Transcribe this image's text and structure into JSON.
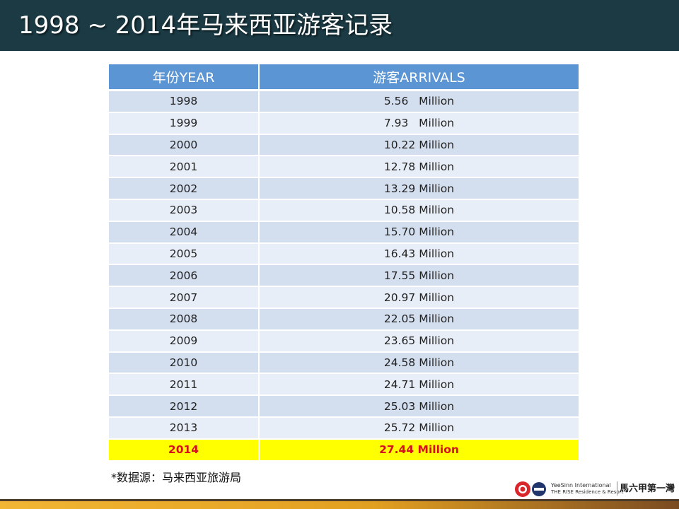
{
  "header": {
    "title": "1998 ~ 2014年马来西亚游客记录"
  },
  "table": {
    "columns": [
      "年份YEAR",
      "游客ARRIVALS"
    ],
    "rows": [
      {
        "year": "1998",
        "arrivals": "5.56   Million"
      },
      {
        "year": "1999",
        "arrivals": "7.93   Million"
      },
      {
        "year": "2000",
        "arrivals": "10.22 Million"
      },
      {
        "year": "2001",
        "arrivals": "12.78 Million"
      },
      {
        "year": "2002",
        "arrivals": "13.29 Million"
      },
      {
        "year": "2003",
        "arrivals": "10.58 Million"
      },
      {
        "year": "2004",
        "arrivals": "15.70 Million"
      },
      {
        "year": "2005",
        "arrivals": "16.43 Million"
      },
      {
        "year": "2006",
        "arrivals": "17.55 Million"
      },
      {
        "year": "2007",
        "arrivals": "20.97 Million"
      },
      {
        "year": "2008",
        "arrivals": "22.05 Million"
      },
      {
        "year": "2009",
        "arrivals": "23.65 Million"
      },
      {
        "year": "2010",
        "arrivals": "24.58 Million"
      },
      {
        "year": "2011",
        "arrivals": "24.71 Million"
      },
      {
        "year": "2012",
        "arrivals": "25.03 Million"
      },
      {
        "year": "2013",
        "arrivals": "25.72 Million"
      },
      {
        "year": "2014",
        "arrivals": "27.44 Million",
        "highlight": true
      }
    ]
  },
  "source_note": "*数据源：马来西亚旅游局",
  "logos": {
    "brand_line_1": "YeeSinn International",
    "brand_line_2": "THE RISE Residence & Resort",
    "tagline": "馬六甲第一灣"
  },
  "colors": {
    "header_bg": "#1b3a44",
    "table_header_bg": "#5b95d3",
    "row_a": "#d3deef",
    "row_b": "#e8eef7",
    "highlight_bg": "#ffff00",
    "highlight_text": "#d4111d"
  }
}
